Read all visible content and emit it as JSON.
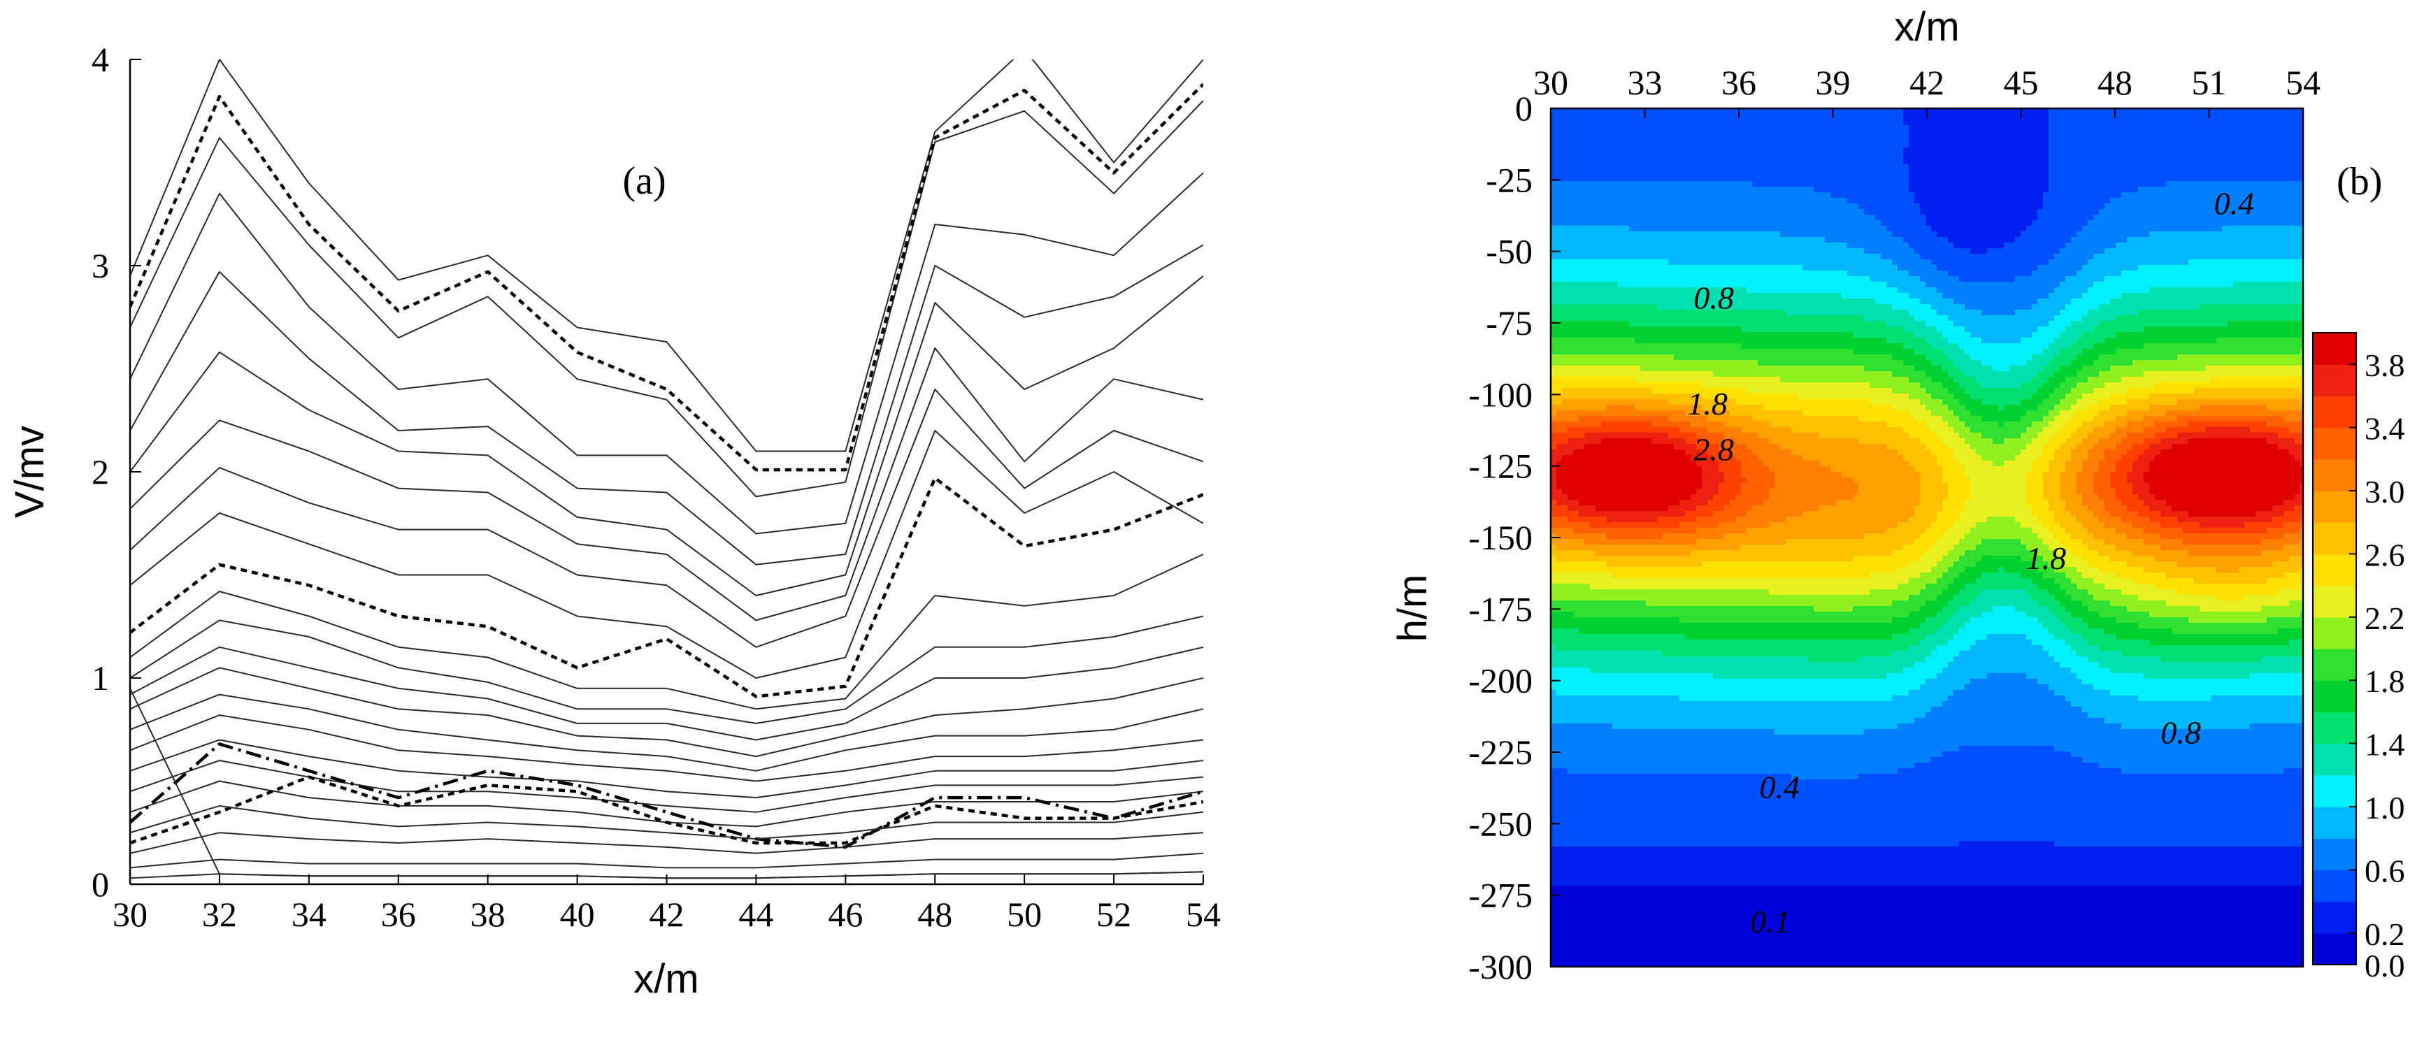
{
  "chart_data": [
    {
      "panel": "(a)",
      "type": "line",
      "xlabel": "x/m",
      "ylabel": "V/mv",
      "xlim": [
        30,
        54
      ],
      "ylim": [
        0,
        4
      ],
      "x": [
        30,
        32,
        34,
        36,
        38,
        40,
        42,
        44,
        46,
        48,
        50,
        52,
        54
      ],
      "x_ticks": [
        "30",
        "32",
        "34",
        "36",
        "38",
        "40",
        "42",
        "44",
        "46",
        "48",
        "50",
        "52",
        "54"
      ],
      "y_ticks": [
        "0",
        "1",
        "2",
        "3",
        "4"
      ],
      "series": [
        {
          "name": "s1",
          "style": "solid",
          "values": [
            2.95,
            4.0,
            3.4,
            2.93,
            3.05,
            2.7,
            2.63,
            2.1,
            2.1,
            3.65,
            4.05,
            3.5,
            4.0
          ]
        },
        {
          "name": "s2",
          "style": "solid",
          "values": [
            2.7,
            3.62,
            3.1,
            2.65,
            2.85,
            2.45,
            2.35,
            1.88,
            1.95,
            3.6,
            3.75,
            3.35,
            3.8
          ]
        },
        {
          "name": "s3",
          "style": "solid",
          "values": [
            2.45,
            3.35,
            2.8,
            2.4,
            2.45,
            2.08,
            2.08,
            1.7,
            1.75,
            3.2,
            3.15,
            3.05,
            3.45
          ]
        },
        {
          "name": "s4",
          "style": "solid",
          "values": [
            2.2,
            2.97,
            2.55,
            2.2,
            2.22,
            1.92,
            1.9,
            1.55,
            1.6,
            3.0,
            2.75,
            2.85,
            3.1
          ]
        },
        {
          "name": "s5",
          "style": "solid",
          "values": [
            2.0,
            2.58,
            2.3,
            2.1,
            2.08,
            1.78,
            1.72,
            1.4,
            1.5,
            2.82,
            2.4,
            2.6,
            2.95
          ]
        },
        {
          "name": "s6",
          "style": "solid",
          "values": [
            1.82,
            2.25,
            2.1,
            1.92,
            1.9,
            1.65,
            1.6,
            1.28,
            1.4,
            2.6,
            2.05,
            2.45,
            2.35
          ]
        },
        {
          "name": "s7",
          "style": "solid",
          "values": [
            1.62,
            2.02,
            1.85,
            1.72,
            1.72,
            1.5,
            1.45,
            1.15,
            1.3,
            2.4,
            1.92,
            2.2,
            2.05
          ]
        },
        {
          "name": "s8",
          "style": "solid",
          "values": [
            1.45,
            1.8,
            1.65,
            1.5,
            1.5,
            1.3,
            1.25,
            1.0,
            1.1,
            2.2,
            1.8,
            2.0,
            1.75
          ]
        },
        {
          "name": "dashed-upper",
          "style": "dashed",
          "values": [
            2.8,
            3.82,
            3.2,
            2.78,
            2.97,
            2.58,
            2.4,
            2.01,
            2.01,
            3.62,
            3.85,
            3.45,
            3.88
          ]
        },
        {
          "name": "dashed-middle",
          "style": "dashed",
          "values": [
            1.22,
            1.55,
            1.45,
            1.3,
            1.25,
            1.05,
            1.19,
            0.91,
            0.96,
            1.97,
            1.64,
            1.72,
            1.89
          ]
        },
        {
          "name": "s9",
          "style": "solid",
          "values": [
            1.1,
            1.42,
            1.3,
            1.15,
            1.1,
            0.95,
            0.95,
            0.85,
            0.9,
            1.4,
            1.35,
            1.4,
            1.6
          ]
        },
        {
          "name": "s10",
          "style": "solid",
          "values": [
            1.0,
            1.28,
            1.2,
            1.05,
            0.98,
            0.85,
            0.85,
            0.78,
            0.85,
            1.15,
            1.15,
            1.2,
            1.3
          ]
        },
        {
          "name": "s11",
          "style": "solid",
          "values": [
            0.92,
            1.15,
            1.05,
            0.95,
            0.9,
            0.78,
            0.78,
            0.7,
            0.78,
            1.0,
            1.0,
            1.05,
            1.15
          ]
        },
        {
          "name": "s12",
          "style": "solid",
          "values": [
            0.85,
            1.05,
            0.95,
            0.85,
            0.82,
            0.72,
            0.7,
            0.62,
            0.72,
            0.82,
            0.85,
            0.9,
            1.0
          ]
        },
        {
          "name": "s13",
          "style": "solid",
          "values": [
            0.75,
            0.92,
            0.85,
            0.75,
            0.7,
            0.65,
            0.62,
            0.55,
            0.65,
            0.72,
            0.72,
            0.75,
            0.85
          ]
        },
        {
          "name": "s14",
          "style": "solid",
          "values": [
            0.65,
            0.82,
            0.75,
            0.65,
            0.62,
            0.58,
            0.55,
            0.5,
            0.55,
            0.62,
            0.62,
            0.65,
            0.7
          ]
        },
        {
          "name": "s15",
          "style": "solid",
          "values": [
            0.55,
            0.7,
            0.62,
            0.55,
            0.52,
            0.5,
            0.45,
            0.42,
            0.48,
            0.55,
            0.55,
            0.55,
            0.6
          ]
        },
        {
          "name": "s16",
          "style": "solid",
          "values": [
            0.45,
            0.6,
            0.52,
            0.45,
            0.45,
            0.42,
            0.38,
            0.35,
            0.42,
            0.48,
            0.48,
            0.48,
            0.52
          ]
        },
        {
          "name": "s17",
          "style": "solid",
          "values": [
            0.35,
            0.5,
            0.42,
            0.38,
            0.38,
            0.35,
            0.3,
            0.28,
            0.35,
            0.4,
            0.4,
            0.4,
            0.45
          ]
        },
        {
          "name": "dashdot",
          "style": "dashdot",
          "values": [
            0.3,
            0.68,
            0.55,
            0.42,
            0.55,
            0.48,
            0.35,
            0.22,
            0.18,
            0.42,
            0.42,
            0.32,
            0.45
          ]
        },
        {
          "name": "dashed-lower",
          "style": "dashed",
          "values": [
            0.2,
            0.35,
            0.52,
            0.38,
            0.48,
            0.45,
            0.3,
            0.2,
            0.2,
            0.38,
            0.32,
            0.32,
            0.4
          ]
        },
        {
          "name": "s18",
          "style": "solid",
          "values": [
            0.25,
            0.38,
            0.32,
            0.28,
            0.3,
            0.28,
            0.25,
            0.22,
            0.25,
            0.3,
            0.3,
            0.3,
            0.35
          ]
        },
        {
          "name": "s19",
          "style": "solid",
          "values": [
            0.15,
            0.25,
            0.22,
            0.2,
            0.22,
            0.2,
            0.18,
            0.15,
            0.18,
            0.22,
            0.22,
            0.22,
            0.25
          ]
        },
        {
          "name": "s20",
          "style": "solid",
          "values": [
            0.08,
            0.12,
            0.1,
            0.1,
            0.1,
            0.1,
            0.08,
            0.08,
            0.1,
            0.12,
            0.12,
            0.12,
            0.15
          ]
        },
        {
          "name": "s21",
          "style": "solid",
          "values": [
            0.03,
            0.05,
            0.04,
            0.04,
            0.04,
            0.04,
            0.03,
            0.03,
            0.04,
            0.05,
            0.05,
            0.05,
            0.06
          ]
        },
        {
          "name": "s22-descending",
          "style": "solid",
          "values": [
            0.95,
            0.05,
            0.04,
            0.04,
            0.04,
            0.04,
            0.03,
            0.03,
            0.04,
            0.05,
            0.05,
            0.05,
            0.06
          ]
        }
      ],
      "annotations": [
        {
          "text": "(a)",
          "x": 41.5,
          "y": 3.35
        }
      ]
    },
    {
      "panel": "(b)",
      "type": "heatmap",
      "title": "x/m",
      "xlabel": "x/m",
      "ylabel": "h/m",
      "xlim": [
        30,
        54
      ],
      "ylim": [
        -300,
        0
      ],
      "x_ticks": [
        "30",
        "33",
        "36",
        "39",
        "42",
        "45",
        "48",
        "51",
        "54"
      ],
      "y_ticks": [
        "0",
        "-25",
        "-50",
        "-75",
        "-100",
        "-125",
        "-150",
        "-175",
        "-200",
        "-225",
        "-250",
        "-275",
        "-300"
      ],
      "colorbar": {
        "levels": [
          0.0,
          0.2,
          0.4,
          0.6,
          0.8,
          1.0,
          1.2,
          1.4,
          1.6,
          1.8,
          2.0,
          2.2,
          2.4,
          2.6,
          2.8,
          3.0,
          3.2,
          3.4,
          3.6,
          3.8,
          4.0
        ],
        "colors": [
          "#0000d8",
          "#0020f0",
          "#0050ff",
          "#0080ff",
          "#00b8ff",
          "#00f0ff",
          "#00e0b0",
          "#00e070",
          "#00d030",
          "#30e030",
          "#90f020",
          "#e8f020",
          "#ffe000",
          "#ffc000",
          "#ffa000",
          "#ff8000",
          "#ff6000",
          "#ff4000",
          "#ee2010",
          "#e00000"
        ],
        "tick_labels": [
          "0.0",
          "0.2",
          "0.6",
          "1.0",
          "1.4",
          "1.8",
          "2.2",
          "2.6",
          "3.0",
          "3.4",
          "3.8"
        ],
        "tick_values": [
          0.0,
          0.2,
          0.6,
          1.0,
          1.4,
          1.8,
          2.2,
          2.6,
          3.0,
          3.4,
          3.8
        ]
      },
      "peaks": [
        {
          "x": 32.5,
          "h": -128,
          "value": 3.9
        },
        {
          "x": 51.5,
          "h": -128,
          "value": 4.0
        }
      ],
      "contour_labels": [
        {
          "text": "0.4",
          "x": 51.8,
          "h": -37
        },
        {
          "text": "0.8",
          "x": 35.2,
          "h": -70
        },
        {
          "text": "1.8",
          "x": 35.0,
          "h": -107
        },
        {
          "text": "2.8",
          "x": 35.2,
          "h": -123
        },
        {
          "text": "1.8",
          "x": 45.8,
          "h": -161
        },
        {
          "text": "0.8",
          "x": 50.1,
          "h": -222
        },
        {
          "text": "0.4",
          "x": 37.3,
          "h": -241
        },
        {
          "text": "0.1",
          "x": 37.0,
          "h": -288
        }
      ],
      "annotations": [
        {
          "text": "(b)",
          "x": 55.8,
          "h": -30
        }
      ]
    }
  ]
}
